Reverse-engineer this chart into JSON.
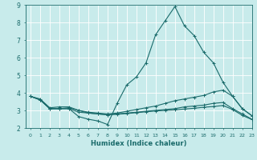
{
  "title": "",
  "xlabel": "Humidex (Indice chaleur)",
  "ylabel": "",
  "xlim": [
    -0.5,
    23
  ],
  "ylim": [
    2,
    9
  ],
  "yticks": [
    2,
    3,
    4,
    5,
    6,
    7,
    8,
    9
  ],
  "xticks": [
    0,
    1,
    2,
    3,
    4,
    5,
    6,
    7,
    8,
    9,
    10,
    11,
    12,
    13,
    14,
    15,
    16,
    17,
    18,
    19,
    20,
    21,
    22,
    23
  ],
  "xtick_labels": [
    "0",
    "1",
    "2",
    "3",
    "4",
    "5",
    "6",
    "7",
    "8",
    "9",
    "10",
    "11",
    "12",
    "13",
    "14",
    "15",
    "16",
    "17",
    "18",
    "19",
    "20",
    "21",
    "22",
    "23"
  ],
  "bg_color": "#c8ebeb",
  "grid_color": "#b0d8d8",
  "line_color": "#1a6b6b",
  "lines": [
    {
      "x": [
        0,
        1,
        2,
        3,
        4,
        5,
        6,
        7,
        8,
        9,
        10,
        11,
        12,
        13,
        14,
        15,
        16,
        17,
        18,
        19,
        20,
        21,
        22,
        23
      ],
      "y": [
        3.8,
        3.6,
        3.1,
        3.1,
        3.1,
        2.65,
        2.5,
        2.4,
        2.2,
        3.4,
        4.45,
        4.9,
        5.7,
        7.3,
        8.1,
        8.9,
        7.8,
        7.25,
        6.3,
        5.7,
        4.6,
        3.8,
        3.1,
        2.7
      ]
    },
    {
      "x": [
        0,
        1,
        2,
        3,
        4,
        5,
        6,
        7,
        8,
        9,
        10,
        11,
        12,
        13,
        14,
        15,
        16,
        17,
        18,
        19,
        20,
        21,
        22,
        23
      ],
      "y": [
        3.8,
        3.6,
        3.1,
        3.1,
        3.15,
        3.0,
        2.9,
        2.85,
        2.8,
        2.85,
        2.95,
        3.05,
        3.15,
        3.25,
        3.4,
        3.55,
        3.65,
        3.75,
        3.85,
        4.05,
        4.15,
        3.8,
        3.1,
        2.7
      ]
    },
    {
      "x": [
        0,
        1,
        2,
        3,
        4,
        5,
        6,
        7,
        8,
        9,
        10,
        11,
        12,
        13,
        14,
        15,
        16,
        17,
        18,
        19,
        20,
        21,
        22,
        23
      ],
      "y": [
        3.8,
        3.6,
        3.1,
        3.1,
        3.1,
        2.9,
        2.85,
        2.8,
        2.75,
        2.8,
        2.85,
        2.9,
        2.95,
        3.0,
        3.05,
        3.1,
        3.2,
        3.25,
        3.3,
        3.4,
        3.45,
        3.1,
        2.8,
        2.5
      ]
    },
    {
      "x": [
        0,
        1,
        2,
        3,
        4,
        5,
        6,
        7,
        8,
        9,
        10,
        11,
        12,
        13,
        14,
        15,
        16,
        17,
        18,
        19,
        20,
        21,
        22,
        23
      ],
      "y": [
        3.8,
        3.65,
        3.15,
        3.2,
        3.2,
        3.0,
        2.85,
        2.8,
        2.75,
        2.78,
        2.82,
        2.87,
        2.92,
        2.97,
        3.0,
        3.03,
        3.08,
        3.12,
        3.18,
        3.22,
        3.28,
        3.05,
        2.72,
        2.48
      ]
    }
  ]
}
